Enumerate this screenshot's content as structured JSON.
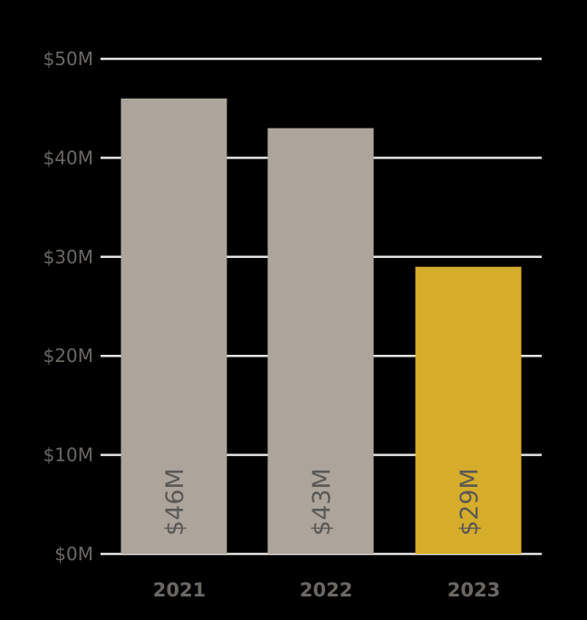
{
  "chart_data": {
    "type": "bar",
    "categories": [
      "2021",
      "2022",
      "2023"
    ],
    "values": [
      46,
      43,
      29
    ],
    "value_labels": [
      "$46M",
      "$43M",
      "$29M"
    ],
    "colors": [
      "#ada59b",
      "#ada59b",
      "#d6ad2b"
    ],
    "yticks": [
      0,
      10,
      20,
      30,
      40,
      50
    ],
    "ytick_labels": [
      "$0M",
      "$10M",
      "$20M",
      "$30M",
      "$40M",
      "$50M"
    ],
    "ylim": [
      0,
      50
    ],
    "grid": true,
    "background": "#000000",
    "title": "",
    "xlabel": "",
    "ylabel": ""
  }
}
